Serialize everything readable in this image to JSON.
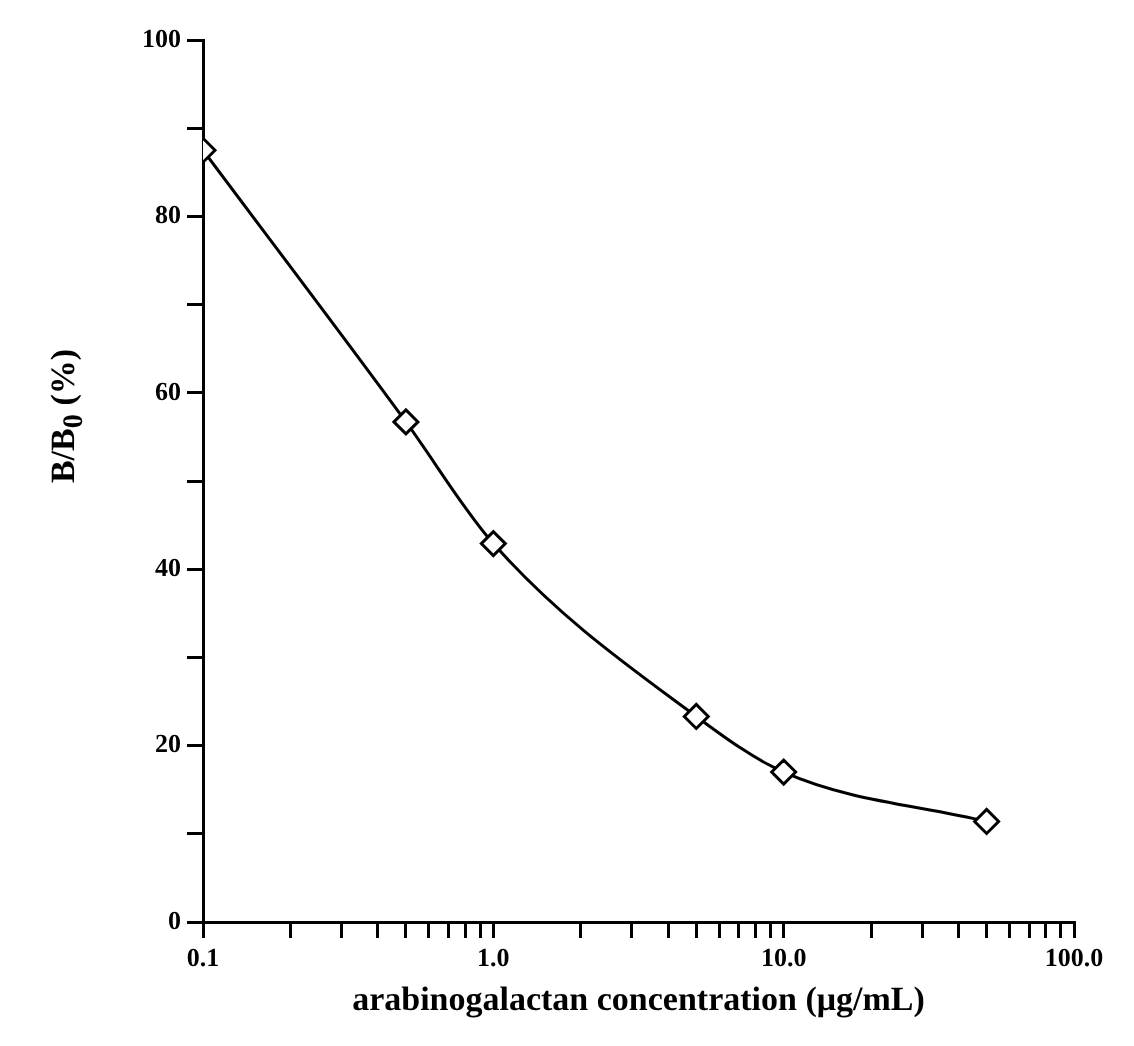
{
  "chart_data": {
    "type": "line",
    "xlabel": "arabinogalactan concentration (μg/mL)",
    "ylabel": "B/B$_{0}$ (%)",
    "x": [
      0.1,
      0.5,
      1,
      5,
      10,
      50
    ],
    "series": [
      {
        "color": "#000000",
        "values": [
          87.5,
          56.7,
          42.9,
          23.3,
          17.0,
          11.4
        ]
      }
    ],
    "log": "x",
    "xlim": [
      0.1,
      100
    ],
    "xticks": [
      {
        "value": 0.1,
        "label": "0.1"
      },
      {
        "value": 0.2,
        "label": null
      },
      {
        "value": 0.3,
        "label": null
      },
      {
        "value": 0.4,
        "label": null
      },
      {
        "value": 0.5,
        "label": null
      },
      {
        "value": 0.6,
        "label": null
      },
      {
        "value": 0.7,
        "label": null
      },
      {
        "value": 0.8,
        "label": null
      },
      {
        "value": 0.9,
        "label": null
      },
      {
        "value": 1,
        "label": "1.0"
      },
      {
        "value": 2,
        "label": null
      },
      {
        "value": 3,
        "label": null
      },
      {
        "value": 4,
        "label": null
      },
      {
        "value": 5,
        "label": null
      },
      {
        "value": 6,
        "label": null
      },
      {
        "value": 7,
        "label": null
      },
      {
        "value": 8,
        "label": null
      },
      {
        "value": 9,
        "label": null
      },
      {
        "value": 10,
        "label": "10.0"
      },
      {
        "value": 20,
        "label": null
      },
      {
        "value": 30,
        "label": null
      },
      {
        "value": 40,
        "label": null
      },
      {
        "value": 50,
        "label": null
      },
      {
        "value": 60,
        "label": null
      },
      {
        "value": 70,
        "label": null
      },
      {
        "value": 80,
        "label": null
      },
      {
        "value": 90,
        "label": null
      },
      {
        "value": 100,
        "label": "100.0"
      }
    ],
    "ylim": [
      0,
      100
    ],
    "yticks": [
      0,
      {
        "value": 10,
        "label": null
      },
      20,
      {
        "value": 30,
        "label": null
      },
      40,
      {
        "value": 50,
        "label": null
      },
      60,
      {
        "value": 70,
        "label": null
      },
      80,
      {
        "value": 90,
        "label": null
      },
      100
    ],
    "marker": "diamond",
    "line_style": "solid",
    "grid": false,
    "legend": false
  }
}
